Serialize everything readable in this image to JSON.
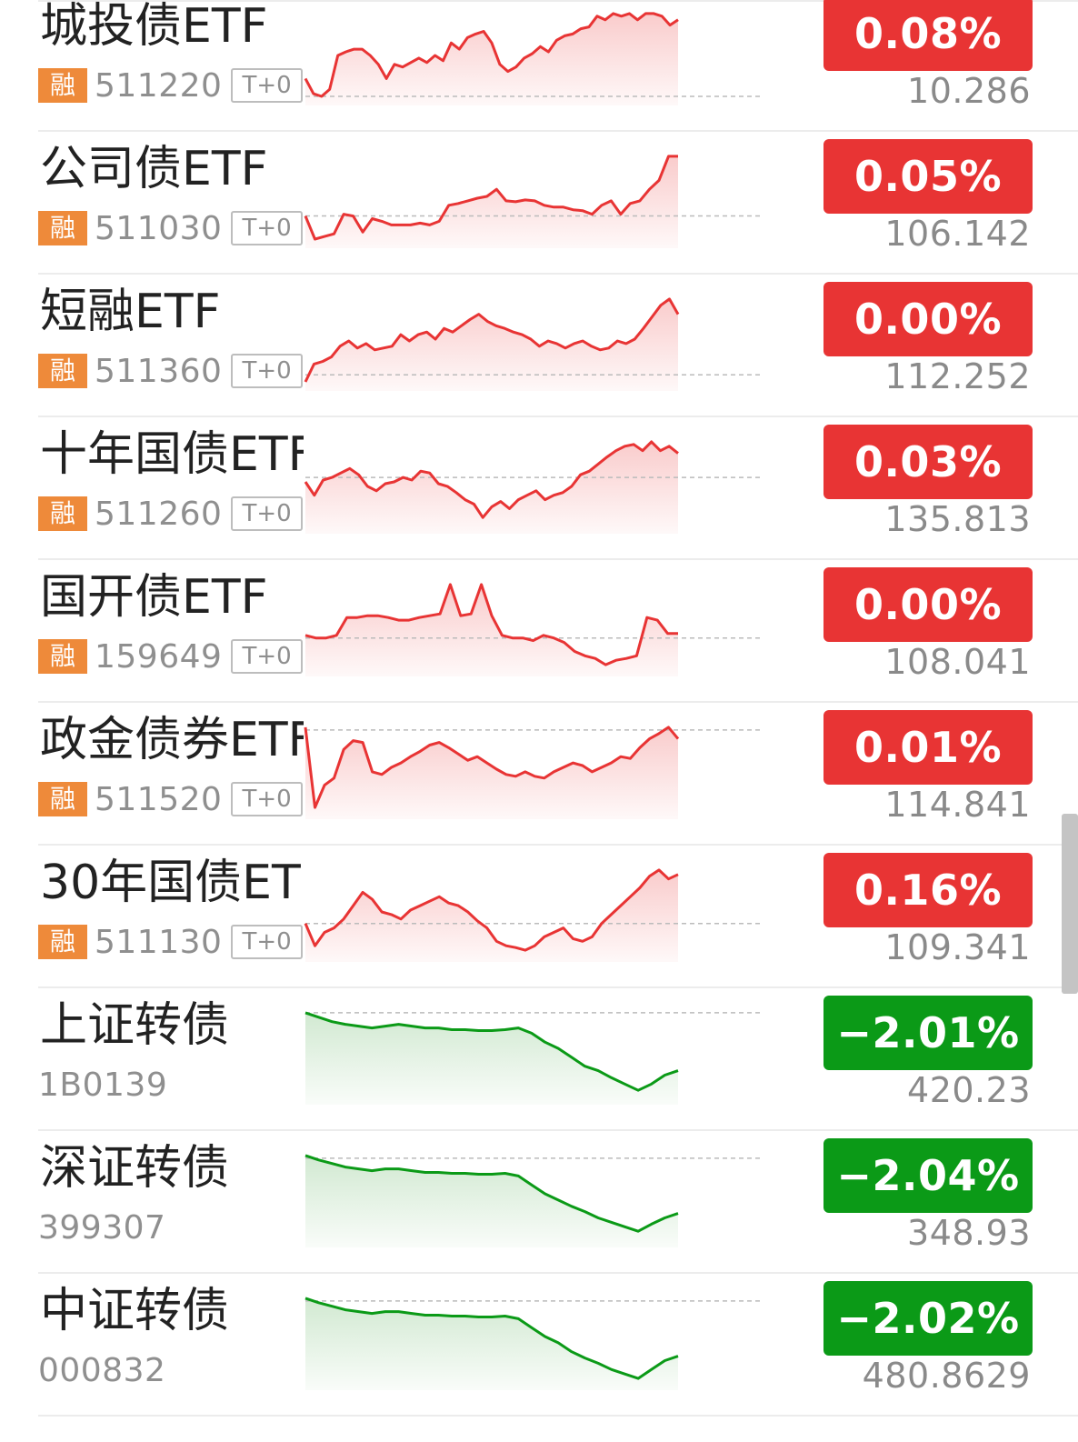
{
  "colors": {
    "up": "#e83434",
    "down": "#0b9a17",
    "up_fill": "#f9c9c9",
    "down_fill": "#cfe8cf",
    "rong_badge": "#ee8a3a"
  },
  "rows": [
    {
      "name": "城投债ETF",
      "rong": "融",
      "code": "511220",
      "tag": "T+0",
      "change": "0.08%",
      "price": "10.286",
      "trend": "up",
      "spark": [
        0.22,
        0.05,
        0.02,
        0.1,
        0.48,
        0.52,
        0.55,
        0.55,
        0.48,
        0.38,
        0.22,
        0.38,
        0.35,
        0.4,
        0.45,
        0.4,
        0.48,
        0.42,
        0.62,
        0.55,
        0.68,
        0.72,
        0.75,
        0.62,
        0.38,
        0.3,
        0.35,
        0.45,
        0.5,
        0.58,
        0.52,
        0.65,
        0.7,
        0.72,
        0.78,
        0.8,
        0.92,
        0.88,
        0.95,
        0.92,
        0.95,
        0.88,
        0.95,
        0.95,
        0.92,
        0.82,
        0.88
      ],
      "baseline": 0.02
    },
    {
      "name": "公司债ETF",
      "rong": "融",
      "code": "511030",
      "tag": "T+0",
      "change": "0.05%",
      "price": "106.142",
      "trend": "up",
      "spark": [
        0.28,
        0.02,
        0.05,
        0.08,
        0.3,
        0.28,
        0.1,
        0.25,
        0.22,
        0.18,
        0.18,
        0.18,
        0.2,
        0.18,
        0.22,
        0.4,
        0.42,
        0.45,
        0.48,
        0.5,
        0.58,
        0.45,
        0.44,
        0.46,
        0.45,
        0.4,
        0.38,
        0.38,
        0.35,
        0.34,
        0.3,
        0.4,
        0.45,
        0.3,
        0.42,
        0.45,
        0.58,
        0.68,
        0.95,
        0.95
      ],
      "baseline": 0.28
    },
    {
      "name": "短融ETF",
      "rong": "融",
      "code": "511360",
      "tag": "T+0",
      "change": "0.00%",
      "price": "112.252",
      "trend": "up",
      "spark": [
        0.02,
        0.22,
        0.25,
        0.3,
        0.42,
        0.48,
        0.4,
        0.45,
        0.38,
        0.4,
        0.42,
        0.55,
        0.48,
        0.55,
        0.58,
        0.5,
        0.62,
        0.58,
        0.65,
        0.72,
        0.78,
        0.7,
        0.65,
        0.62,
        0.58,
        0.55,
        0.5,
        0.42,
        0.48,
        0.45,
        0.4,
        0.45,
        0.48,
        0.42,
        0.38,
        0.4,
        0.48,
        0.45,
        0.5,
        0.62,
        0.75,
        0.88,
        0.95,
        0.78
      ],
      "baseline": 0.1
    },
    {
      "name": "十年国债ETF",
      "rong": "融",
      "code": "511260",
      "tag": "T+0",
      "change": "0.03%",
      "price": "135.813",
      "trend": "up",
      "spark": [
        0.5,
        0.35,
        0.52,
        0.55,
        0.6,
        0.65,
        0.58,
        0.45,
        0.4,
        0.48,
        0.5,
        0.55,
        0.52,
        0.62,
        0.6,
        0.48,
        0.45,
        0.38,
        0.3,
        0.25,
        0.1,
        0.22,
        0.28,
        0.2,
        0.3,
        0.35,
        0.4,
        0.3,
        0.35,
        0.38,
        0.45,
        0.58,
        0.62,
        0.7,
        0.78,
        0.85,
        0.9,
        0.92,
        0.85,
        0.95,
        0.85,
        0.9,
        0.82
      ],
      "baseline": 0.55
    },
    {
      "name": "国开债ETF",
      "rong": "融",
      "code": "159649",
      "tag": "T+0",
      "change": "0.00%",
      "price": "108.041",
      "trend": "up",
      "spark": [
        0.38,
        0.35,
        0.35,
        0.38,
        0.58,
        0.58,
        0.6,
        0.6,
        0.58,
        0.55,
        0.55,
        0.58,
        0.6,
        0.62,
        0.95,
        0.6,
        0.62,
        0.95,
        0.6,
        0.38,
        0.35,
        0.35,
        0.32,
        0.38,
        0.35,
        0.3,
        0.2,
        0.15,
        0.12,
        0.05,
        0.1,
        0.12,
        0.15,
        0.58,
        0.55,
        0.4,
        0.4
      ],
      "baseline": 0.35
    },
    {
      "name": "政金债券ETF",
      "rong": "融",
      "code": "511520",
      "tag": "T+0",
      "change": "0.01%",
      "price": "114.841",
      "trend": "up",
      "spark": [
        0.95,
        0.05,
        0.3,
        0.38,
        0.7,
        0.8,
        0.78,
        0.45,
        0.42,
        0.5,
        0.55,
        0.62,
        0.68,
        0.75,
        0.78,
        0.72,
        0.65,
        0.58,
        0.62,
        0.55,
        0.48,
        0.42,
        0.4,
        0.45,
        0.4,
        0.38,
        0.45,
        0.5,
        0.55,
        0.52,
        0.45,
        0.5,
        0.55,
        0.62,
        0.6,
        0.72,
        0.82,
        0.88,
        0.95,
        0.82
      ],
      "baseline": 0.92
    },
    {
      "name": "30年国债ET…",
      "rong": "融",
      "code": "511130",
      "tag": "T+0",
      "change": "0.16%",
      "price": "109.341",
      "trend": "up",
      "spark": [
        0.35,
        0.1,
        0.25,
        0.3,
        0.4,
        0.55,
        0.7,
        0.62,
        0.48,
        0.45,
        0.4,
        0.5,
        0.55,
        0.6,
        0.65,
        0.58,
        0.55,
        0.48,
        0.38,
        0.3,
        0.15,
        0.1,
        0.08,
        0.05,
        0.1,
        0.2,
        0.25,
        0.3,
        0.18,
        0.15,
        0.2,
        0.35,
        0.45,
        0.55,
        0.65,
        0.75,
        0.88,
        0.95,
        0.85,
        0.9
      ],
      "baseline": 0.35
    },
    {
      "name": "上证转债",
      "rong": "",
      "code": "1B0139",
      "tag": "",
      "change": "−2.01%",
      "price": "420.23",
      "trend": "down",
      "spark": [
        0.95,
        0.9,
        0.85,
        0.82,
        0.8,
        0.78,
        0.8,
        0.82,
        0.8,
        0.78,
        0.78,
        0.76,
        0.76,
        0.75,
        0.75,
        0.76,
        0.78,
        0.72,
        0.62,
        0.55,
        0.45,
        0.35,
        0.3,
        0.22,
        0.15,
        0.08,
        0.15,
        0.25,
        0.3
      ],
      "baseline": 0.95
    },
    {
      "name": "深证转债",
      "rong": "",
      "code": "399307",
      "tag": "",
      "change": "−2.04%",
      "price": "348.93",
      "trend": "down",
      "spark": [
        0.95,
        0.9,
        0.86,
        0.82,
        0.8,
        0.78,
        0.8,
        0.8,
        0.78,
        0.76,
        0.76,
        0.75,
        0.75,
        0.74,
        0.74,
        0.75,
        0.72,
        0.62,
        0.52,
        0.45,
        0.38,
        0.32,
        0.25,
        0.2,
        0.15,
        0.1,
        0.18,
        0.25,
        0.3
      ],
      "baseline": 0.92
    },
    {
      "name": "中证转债",
      "rong": "",
      "code": "000832",
      "tag": "",
      "change": "−2.02%",
      "price": "480.8629",
      "trend": "down",
      "spark": [
        0.95,
        0.9,
        0.86,
        0.82,
        0.8,
        0.78,
        0.8,
        0.8,
        0.78,
        0.76,
        0.76,
        0.75,
        0.75,
        0.74,
        0.74,
        0.75,
        0.72,
        0.62,
        0.52,
        0.45,
        0.35,
        0.28,
        0.22,
        0.15,
        0.1,
        0.05,
        0.15,
        0.25,
        0.3
      ],
      "baseline": 0.92
    }
  ]
}
